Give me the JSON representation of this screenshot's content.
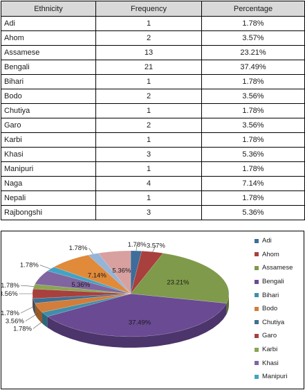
{
  "table": {
    "headers": [
      "Ethnicity",
      "Frequency",
      "Percentage"
    ],
    "rows": [
      [
        "Adi",
        "1",
        "1.78%"
      ],
      [
        "Ahom",
        "2",
        "3.57%"
      ],
      [
        "Assamese",
        "13",
        "23.21%"
      ],
      [
        "Bengali",
        "21",
        "37.49%"
      ],
      [
        "Bihari",
        "1",
        "1.78%"
      ],
      [
        "Bodo",
        "2",
        "3.56%"
      ],
      [
        "Chutiya",
        "1",
        "1.78%"
      ],
      [
        "Garo",
        "2",
        "3.56%"
      ],
      [
        "Karbi",
        "1",
        "1.78%"
      ],
      [
        "Khasi",
        "3",
        "5.36%"
      ],
      [
        "Manipuri",
        "1",
        "1.78%"
      ],
      [
        "Naga",
        "4",
        "7.14%"
      ],
      [
        "Nepali",
        "1",
        "1.78%"
      ],
      [
        "Rajbongshi",
        "3",
        "5.36%"
      ]
    ]
  },
  "chart_data": {
    "type": "pie",
    "style": "3d",
    "legend_position": "right",
    "categories": [
      "Adi",
      "Ahom",
      "Assamese",
      "Bengali",
      "Bihari",
      "Bodo",
      "Chutiya",
      "Garo",
      "Karbi",
      "Khasi",
      "Manipuri",
      "Naga",
      "Nepali",
      "Rajbongshi"
    ],
    "values": [
      1.78,
      3.57,
      23.21,
      37.49,
      1.78,
      3.56,
      1.78,
      3.56,
      1.78,
      5.36,
      1.78,
      7.14,
      1.78,
      5.36
    ],
    "data_labels": [
      "1.78%",
      "3.57%",
      "23.21%",
      "37.49%",
      "1.78%",
      "3.56%",
      "1.78%",
      "3.56%",
      "1.78%",
      "5.36%",
      "1.78%",
      "7.14%",
      "1.78%",
      "5.36%"
    ],
    "legend_entries": [
      "Adi",
      "Ahom",
      "Assamese",
      "Bengali",
      "Bihari",
      "Bodo",
      "Chutiya",
      "Garo",
      "Karbi",
      "Khasi",
      "Manipuri"
    ],
    "colors": [
      "#3d6d9a",
      "#a8403d",
      "#7f9a4a",
      "#6a4a93",
      "#3f8fab",
      "#d27d3a",
      "#3f6f94",
      "#a8403d",
      "#8aa553",
      "#8065a0",
      "#42a3c4",
      "#e08a3a",
      "#94b4d8",
      "#d9a0a0"
    ]
  }
}
